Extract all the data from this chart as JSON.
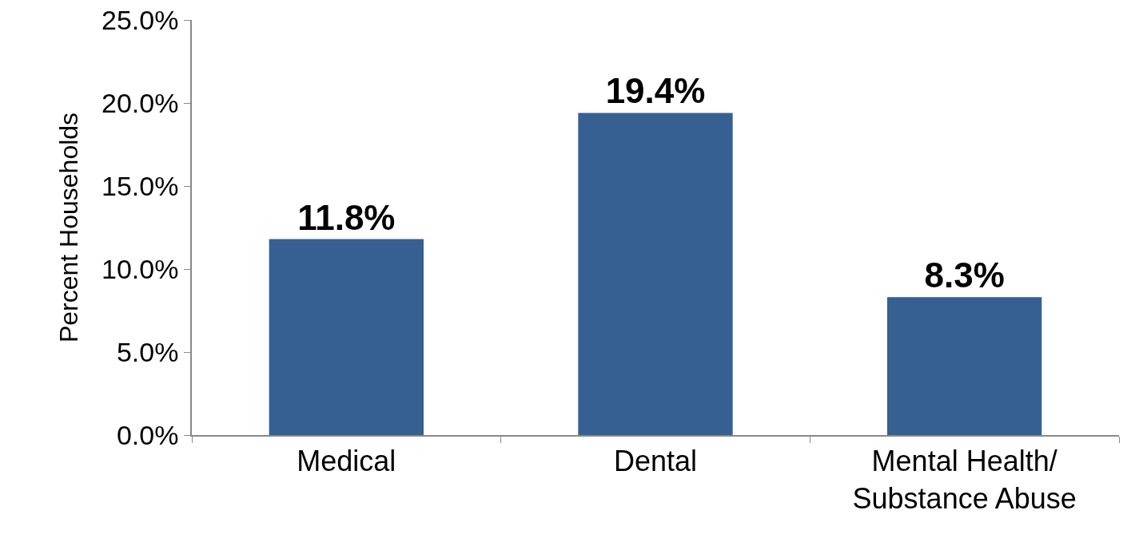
{
  "chart_data": {
    "type": "bar",
    "ylabel": "Percent Households",
    "categories": [
      "Medical",
      "Dental",
      "Mental Health/ Substance Abuse"
    ],
    "values": [
      11.8,
      19.4,
      8.3
    ],
    "color": "#366092",
    "value_labels": [
      "11.8%",
      "19.4%",
      "8.3%"
    ],
    "ylim": [
      0,
      25
    ],
    "yticks": [
      {
        "value": 0,
        "label": "0.0%"
      },
      {
        "value": 5,
        "label": "5.0%"
      },
      {
        "value": 10,
        "label": "10.0%"
      },
      {
        "value": 15,
        "label": "15.0%"
      },
      {
        "value": 20,
        "label": "20.0%"
      },
      {
        "value": 25,
        "label": "25.0%"
      }
    ],
    "grid": false
  }
}
